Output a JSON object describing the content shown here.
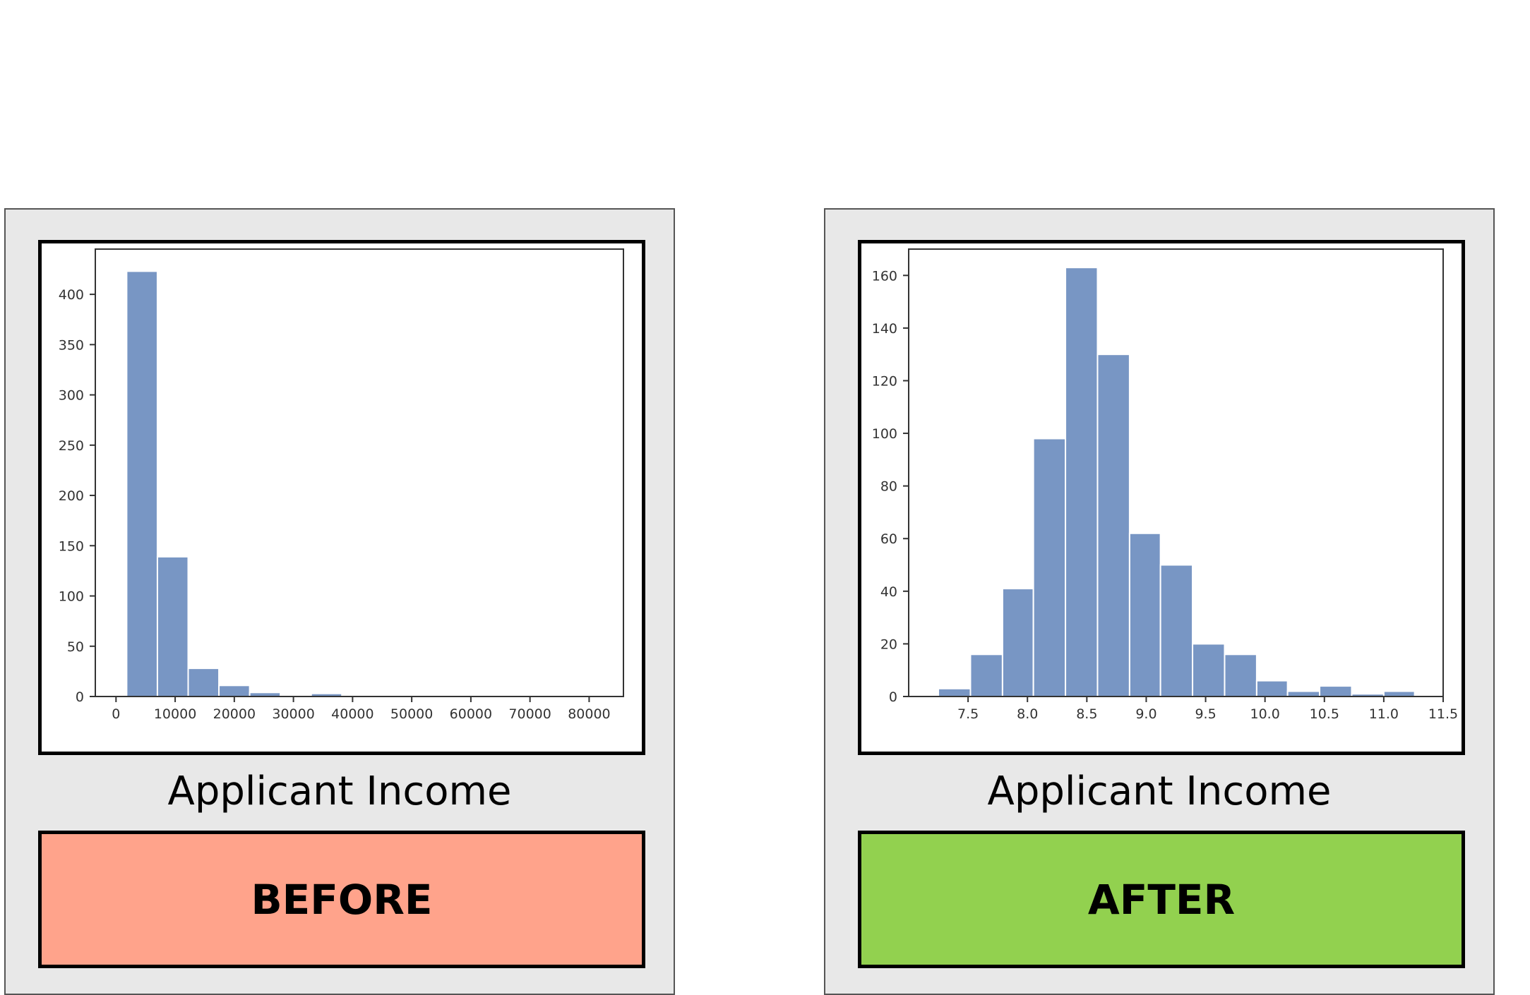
{
  "panels": [
    {
      "caption": "Applicant Income",
      "tag_label": "BEFORE",
      "tag_color": "#ffa38b"
    },
    {
      "caption": "Applicant Income",
      "tag_label": "AFTER",
      "tag_color": "#92d14f"
    }
  ],
  "chart_data": [
    {
      "type": "bar",
      "title": "",
      "xlabel": "",
      "ylabel": "",
      "bar_color": "#7896c4",
      "bin_edges": [
        1800,
        7000,
        12200,
        17400,
        22600,
        27800,
        33000,
        38200,
        43400,
        48600,
        53800,
        59000,
        64200,
        69400,
        74600,
        79800,
        85000
      ],
      "values": [
        423,
        139,
        28,
        11,
        4,
        1,
        3,
        1,
        0,
        0,
        0,
        0,
        0,
        0,
        0,
        0
      ],
      "xlim": [
        -3500,
        85800
      ],
      "ylim": [
        0,
        445
      ],
      "xticks": [
        0,
        10000,
        20000,
        30000,
        40000,
        50000,
        60000,
        70000,
        80000
      ],
      "xtick_labels": [
        "0",
        "10000",
        "20000",
        "30000",
        "40000",
        "50000",
        "60000",
        "70000",
        "80000"
      ],
      "yticks": [
        0,
        50,
        100,
        150,
        200,
        250,
        300,
        350,
        400
      ],
      "ytick_labels": [
        "0",
        "50",
        "100",
        "150",
        "200",
        "250",
        "300",
        "350",
        "400"
      ],
      "grid": false
    },
    {
      "type": "bar",
      "title": "",
      "xlabel": "",
      "ylabel": "",
      "bar_color": "#7896c4",
      "bin_edges": [
        7.25,
        7.52,
        7.79,
        8.05,
        8.32,
        8.59,
        8.86,
        9.12,
        9.39,
        9.66,
        9.93,
        10.19,
        10.46,
        10.73,
        11.0,
        11.26
      ],
      "values": [
        3,
        16,
        41,
        98,
        163,
        130,
        62,
        50,
        20,
        16,
        6,
        2,
        4,
        1,
        2
      ],
      "xlim": [
        7.0,
        11.5
      ],
      "ylim": [
        0,
        170
      ],
      "xticks": [
        7.5,
        8.0,
        8.5,
        9.0,
        9.5,
        10.0,
        10.5,
        11.0,
        11.5
      ],
      "xtick_labels": [
        "7.5",
        "8.0",
        "8.5",
        "9.0",
        "9.5",
        "10.0",
        "10.5",
        "11.0",
        "11.5"
      ],
      "yticks": [
        0,
        20,
        40,
        60,
        80,
        100,
        120,
        140,
        160
      ],
      "ytick_labels": [
        "0",
        "20",
        "40",
        "60",
        "80",
        "100",
        "120",
        "140",
        "160"
      ],
      "grid": false
    }
  ]
}
